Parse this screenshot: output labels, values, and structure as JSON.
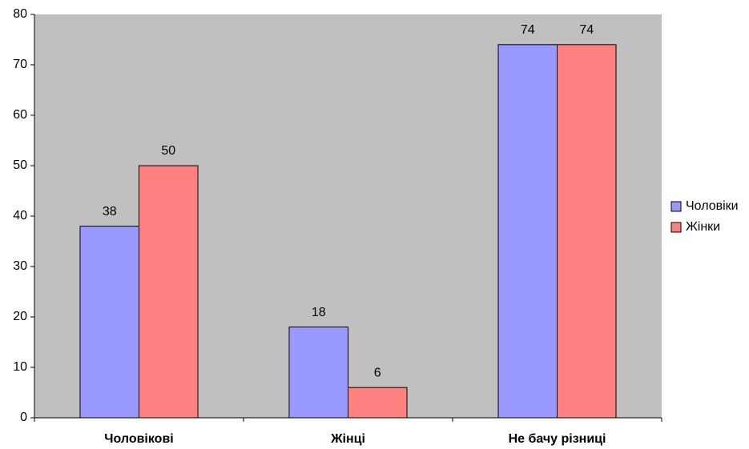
{
  "chart_data": {
    "type": "bar",
    "categories": [
      "Чоловікові",
      "Жінці",
      "Не бачу різниці"
    ],
    "series": [
      {
        "name": "Чоловіки",
        "color": "#9999ff",
        "values": [
          38,
          18,
          74
        ]
      },
      {
        "name": "Жінки",
        "color": "#ff8080",
        "values": [
          50,
          6,
          74
        ]
      }
    ],
    "ylim": [
      0,
      80
    ],
    "yticks": [
      0,
      10,
      20,
      30,
      40,
      50,
      60,
      70,
      80
    ],
    "grid": false,
    "legend": "right",
    "plot_background": "#c0c0c0"
  }
}
